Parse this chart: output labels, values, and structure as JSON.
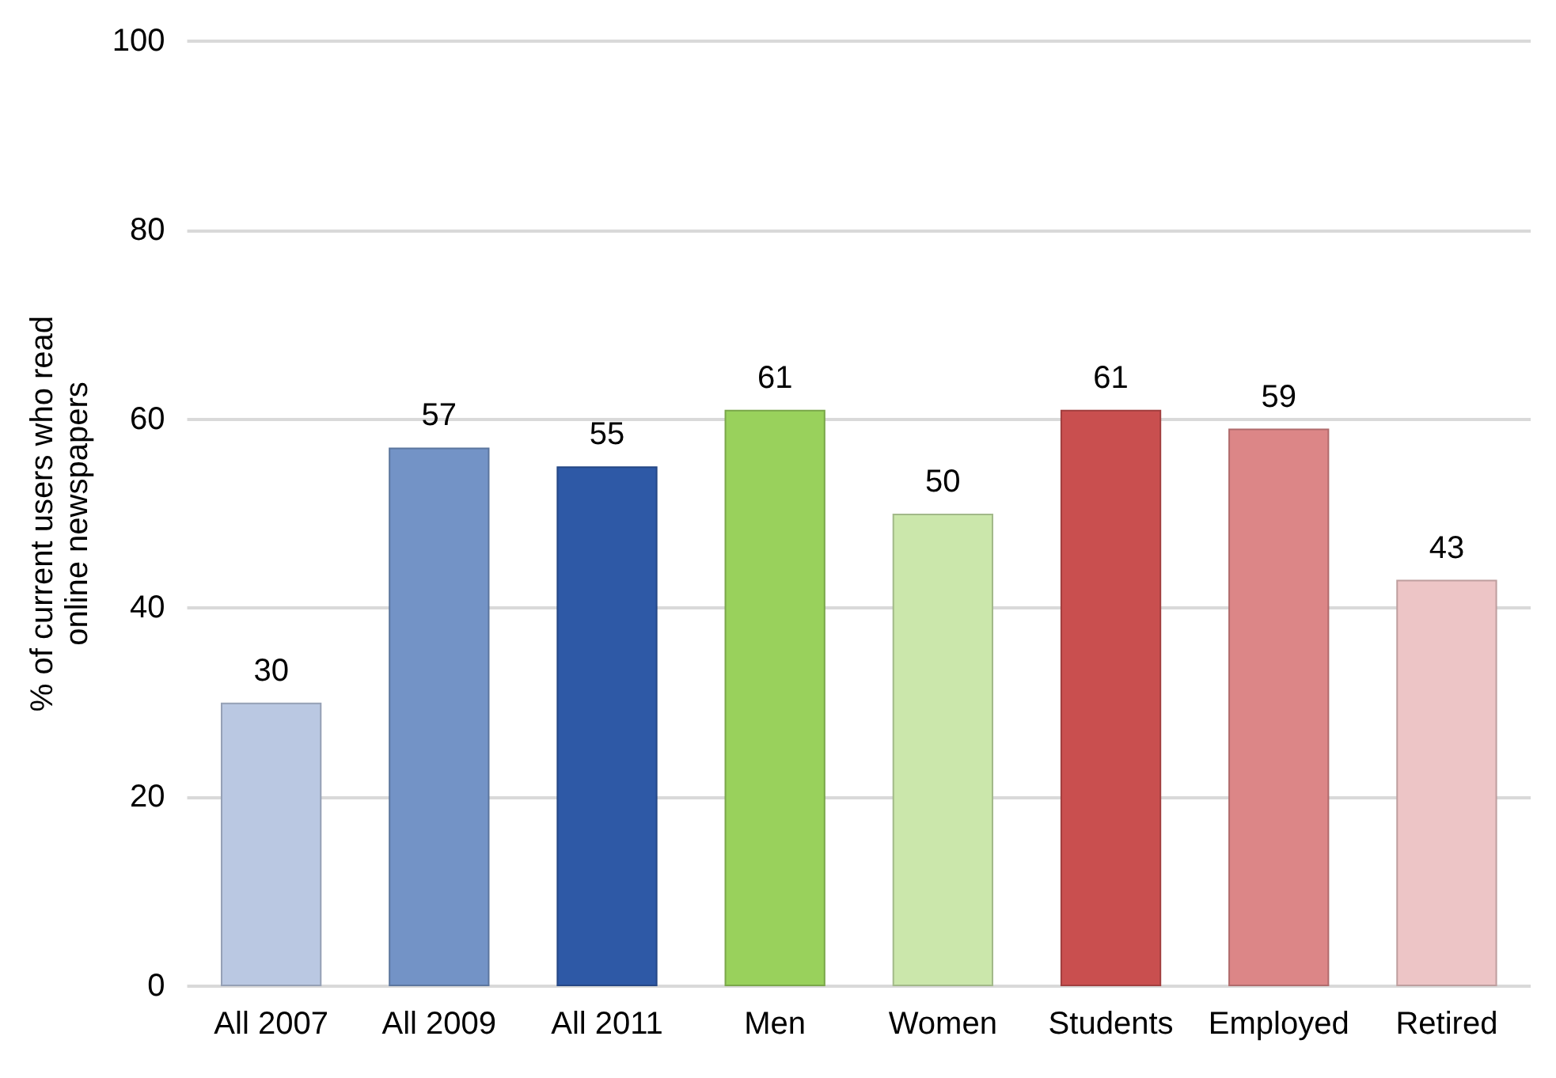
{
  "chart_data": {
    "type": "bar",
    "ylabel": "% of current users who read\nonline newspapers",
    "categories": [
      "All 2007",
      "All 2009",
      "All 2011",
      "Men",
      "Women",
      "Students",
      "Employed",
      "Retired"
    ],
    "values": [
      30,
      57,
      55,
      61,
      50,
      61,
      59,
      43
    ],
    "colors": [
      "#bac8e2",
      "#7393c6",
      "#2e59a6",
      "#99d15c",
      "#cbe7ab",
      "#c94f4f",
      "#dc8687",
      "#edc5c6"
    ],
    "ylim": [
      0,
      100
    ],
    "yticks": [
      0,
      20,
      40,
      60,
      80,
      100
    ],
    "grid": "y",
    "data_labels": true
  }
}
